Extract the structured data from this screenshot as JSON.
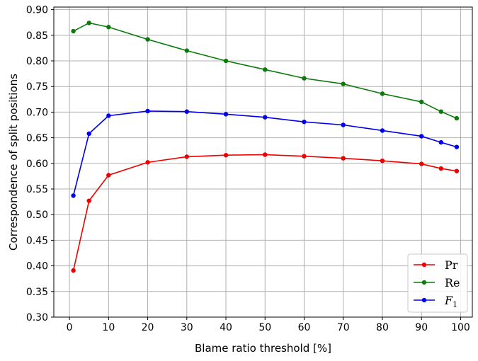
{
  "chart_data": {
    "type": "line",
    "xlabel": "Blame ratio threshold [%]",
    "ylabel": "Correspondence of split positions",
    "x": [
      1,
      5,
      10,
      20,
      30,
      40,
      50,
      60,
      70,
      80,
      90,
      95,
      99
    ],
    "xlim": [
      -4,
      103
    ],
    "ylim": [
      0.3,
      0.905
    ],
    "xticks": [
      0,
      10,
      20,
      30,
      40,
      50,
      60,
      70,
      80,
      90,
      100
    ],
    "yticks": [
      0.3,
      0.35,
      0.4,
      0.45,
      0.5,
      0.55,
      0.6,
      0.65,
      0.7,
      0.75,
      0.8,
      0.85,
      0.9
    ],
    "grid": true,
    "legend_position": "bottom-right",
    "series": [
      {
        "name": "Pr",
        "name_main": "Pr",
        "name_sub": "",
        "color": "#ee0000",
        "values": [
          0.391,
          0.527,
          0.577,
          0.602,
          0.613,
          0.616,
          0.617,
          0.614,
          0.61,
          0.605,
          0.599,
          0.59,
          0.585
        ]
      },
      {
        "name": "Re",
        "name_main": "Re",
        "name_sub": "",
        "color": "#0a7a0a",
        "values": [
          0.858,
          0.874,
          0.866,
          0.842,
          0.82,
          0.8,
          0.783,
          0.766,
          0.755,
          0.736,
          0.72,
          0.701,
          0.688
        ]
      },
      {
        "name": "F1",
        "name_main": "F",
        "name_sub": "1",
        "color": "#0000ee",
        "values": [
          0.537,
          0.658,
          0.693,
          0.702,
          0.701,
          0.696,
          0.69,
          0.681,
          0.675,
          0.664,
          0.653,
          0.641,
          0.632
        ]
      }
    ]
  }
}
